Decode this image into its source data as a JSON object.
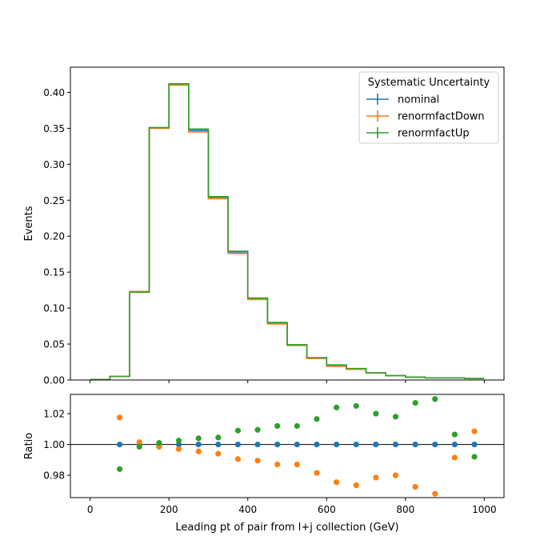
{
  "chart_data": [
    {
      "type": "line",
      "title": "",
      "ylabel": "Events",
      "xlabel": "",
      "xlim": [
        -50,
        1050
      ],
      "ylim": [
        0,
        0.435
      ],
      "yticks": [
        0.0,
        0.05,
        0.1,
        0.15,
        0.2,
        0.25,
        0.3,
        0.35,
        0.4
      ],
      "ytick_labels": [
        "0.00",
        "0.05",
        "0.10",
        "0.15",
        "0.20",
        "0.25",
        "0.30",
        "0.35",
        "0.40"
      ],
      "xticks": [
        0,
        200,
        400,
        600,
        800,
        1000
      ],
      "bin_edges": [
        0,
        50,
        100,
        150,
        200,
        250,
        300,
        350,
        400,
        450,
        500,
        550,
        600,
        650,
        700,
        750,
        800,
        850,
        900,
        950,
        1000
      ],
      "legend": {
        "title": "Systematic Uncertainty",
        "position": "top-right"
      },
      "series": [
        {
          "name": "nominal",
          "color": "#1f77b4",
          "values": [
            0.0005,
            0.005,
            0.123,
            0.351,
            0.411,
            0.347,
            0.254,
            0.178,
            0.113,
            0.079,
            0.049,
            0.031,
            0.02,
            0.015,
            0.01,
            0.006,
            0.004,
            0.003,
            0.003,
            0.002
          ]
        },
        {
          "name": "renormfactDown",
          "color": "#ff7f0e",
          "values": [
            0.0005,
            0.005,
            0.123,
            0.35,
            0.41,
            0.345,
            0.252,
            0.176,
            0.112,
            0.078,
            0.048,
            0.03,
            0.019,
            0.015,
            0.01,
            0.006,
            0.004,
            0.003,
            0.003,
            0.002
          ]
        },
        {
          "name": "renormfactUp",
          "color": "#2ca02c",
          "values": [
            0.0005,
            0.005,
            0.122,
            0.351,
            0.412,
            0.349,
            0.255,
            0.179,
            0.114,
            0.08,
            0.049,
            0.031,
            0.021,
            0.016,
            0.01,
            0.006,
            0.004,
            0.003,
            0.003,
            0.002
          ]
        }
      ]
    },
    {
      "type": "scatter",
      "ylabel": "Ratio",
      "xlabel": "Leading pt of pair from l+j collection (GeV)",
      "xlim": [
        -50,
        1050
      ],
      "ylim": [
        0.9655,
        1.0325
      ],
      "yticks": [
        0.98,
        1.0,
        1.02
      ],
      "ytick_labels": [
        "0.98",
        "1.00",
        "1.02"
      ],
      "xticks": [
        0,
        200,
        400,
        600,
        800,
        1000
      ],
      "xtick_labels": [
        "0",
        "200",
        "400",
        "600",
        "800",
        "1000"
      ],
      "reference_line": 1.0,
      "x": [
        75,
        125,
        175,
        225,
        275,
        325,
        375,
        425,
        475,
        525,
        575,
        625,
        675,
        725,
        775,
        825,
        875,
        925,
        975
      ],
      "series": [
        {
          "name": "nominal",
          "color": "#1f77b4",
          "values": [
            1.0,
            1.0,
            1.0,
            1.0,
            1.0,
            1.0,
            1.0,
            1.0,
            1.0,
            1.0,
            1.0,
            1.0,
            1.0,
            1.0,
            1.0,
            1.0,
            1.0,
            1.0,
            1.0
          ]
        },
        {
          "name": "renormfactDown",
          "color": "#ff7f0e",
          "values": [
            1.0175,
            1.0015,
            0.9985,
            0.997,
            0.9955,
            0.994,
            0.9905,
            0.9895,
            0.987,
            0.987,
            0.9815,
            0.9755,
            0.9735,
            0.9785,
            0.98,
            0.9725,
            0.968,
            0.9915,
            1.0085
          ]
        },
        {
          "name": "renormfactUp",
          "color": "#2ca02c",
          "values": [
            0.984,
            0.9985,
            1.001,
            1.0025,
            1.004,
            1.0045,
            1.009,
            1.0095,
            1.012,
            1.012,
            1.0165,
            1.024,
            1.025,
            1.02,
            1.018,
            1.027,
            1.0295,
            1.0065,
            0.992
          ]
        }
      ]
    }
  ]
}
